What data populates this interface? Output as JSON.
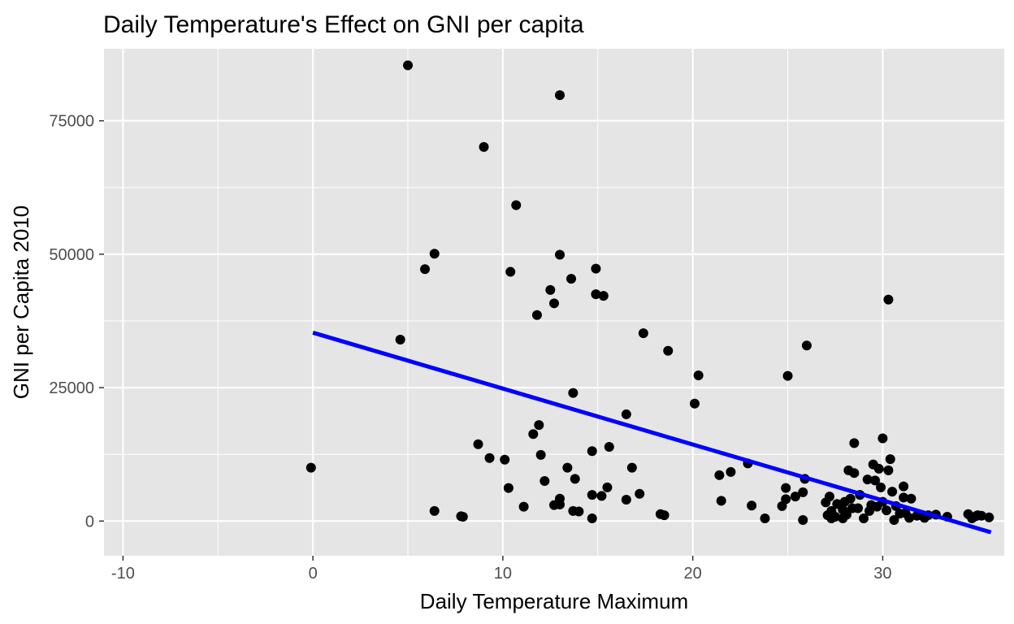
{
  "chart_data": {
    "type": "scatter",
    "title": "Daily Temperature's Effect on GNI per capita",
    "xlabel": "Daily Temperature Maximum",
    "ylabel": "GNI per Capita 2010",
    "xlim": [
      -11,
      36.4
    ],
    "ylim": [
      -6500,
      88500
    ],
    "x_ticks": [
      -10,
      0,
      10,
      20,
      30
    ],
    "y_ticks": [
      0,
      25000,
      50000,
      75000
    ],
    "x_tick_labels": [
      "-10",
      "0",
      "10",
      "20",
      "30"
    ],
    "y_tick_labels": [
      "0",
      "25000",
      "50000",
      "75000"
    ],
    "grid": true,
    "panel_background": "#e5e5e5",
    "point_color": "#000000",
    "trend_line": {
      "color": "#0000ff",
      "x": [
        0,
        35.7
      ],
      "y": [
        35300,
        -2100
      ]
    },
    "points": [
      [
        -0.1,
        10000
      ],
      [
        4.6,
        34000
      ],
      [
        5.0,
        85400
      ],
      [
        5.9,
        47200
      ],
      [
        6.4,
        50100
      ],
      [
        6.4,
        1900
      ],
      [
        7.8,
        900
      ],
      [
        7.9,
        800
      ],
      [
        8.7,
        14400
      ],
      [
        9.0,
        70100
      ],
      [
        9.3,
        11800
      ],
      [
        10.1,
        11500
      ],
      [
        10.3,
        6200
      ],
      [
        10.4,
        46700
      ],
      [
        10.7,
        59200
      ],
      [
        11.1,
        2700
      ],
      [
        11.6,
        16300
      ],
      [
        11.9,
        18000
      ],
      [
        11.8,
        38600
      ],
      [
        12.0,
        12400
      ],
      [
        12.2,
        7500
      ],
      [
        12.5,
        43300
      ],
      [
        12.7,
        40800
      ],
      [
        12.7,
        3000
      ],
      [
        13.0,
        79800
      ],
      [
        13.0,
        49900
      ],
      [
        13.0,
        4200
      ],
      [
        13.0,
        3100
      ],
      [
        13.4,
        10000
      ],
      [
        13.6,
        45400
      ],
      [
        13.7,
        24000
      ],
      [
        13.7,
        1900
      ],
      [
        13.8,
        7900
      ],
      [
        14.0,
        1800
      ],
      [
        14.7,
        13100
      ],
      [
        14.7,
        4900
      ],
      [
        14.7,
        500
      ],
      [
        14.9,
        47300
      ],
      [
        14.9,
        42500
      ],
      [
        15.2,
        4700
      ],
      [
        15.3,
        42200
      ],
      [
        15.5,
        6300
      ],
      [
        15.6,
        13900
      ],
      [
        16.5,
        20000
      ],
      [
        16.5,
        4000
      ],
      [
        16.8,
        10000
      ],
      [
        17.2,
        5100
      ],
      [
        17.4,
        35200
      ],
      [
        18.3,
        1300
      ],
      [
        18.5,
        1100
      ],
      [
        18.7,
        31900
      ],
      [
        20.1,
        22000
      ],
      [
        20.3,
        27300
      ],
      [
        21.4,
        8600
      ],
      [
        21.5,
        3800
      ],
      [
        22.0,
        9200
      ],
      [
        22.9,
        10800
      ],
      [
        23.1,
        2900
      ],
      [
        23.8,
        500
      ],
      [
        24.7,
        2800
      ],
      [
        24.9,
        4100
      ],
      [
        24.9,
        6200
      ],
      [
        25.0,
        27200
      ],
      [
        25.4,
        4600
      ],
      [
        25.8,
        5400
      ],
      [
        25.8,
        200
      ],
      [
        25.9,
        7900
      ],
      [
        26.0,
        32900
      ],
      [
        27.0,
        3500
      ],
      [
        27.1,
        1100
      ],
      [
        27.2,
        4600
      ],
      [
        27.3,
        500
      ],
      [
        27.3,
        1900
      ],
      [
        27.5,
        800
      ],
      [
        27.6,
        3200
      ],
      [
        27.9,
        2100
      ],
      [
        27.9,
        500
      ],
      [
        28.0,
        3600
      ],
      [
        28.1,
        1200
      ],
      [
        28.2,
        9500
      ],
      [
        28.3,
        4200
      ],
      [
        28.4,
        2400
      ],
      [
        28.5,
        9000
      ],
      [
        28.5,
        14600
      ],
      [
        28.7,
        2400
      ],
      [
        28.8,
        4900
      ],
      [
        29.0,
        500
      ],
      [
        29.2,
        7800
      ],
      [
        29.3,
        1900
      ],
      [
        29.4,
        3000
      ],
      [
        29.5,
        10600
      ],
      [
        29.6,
        7600
      ],
      [
        29.7,
        2700
      ],
      [
        29.8,
        9800
      ],
      [
        29.9,
        6300
      ],
      [
        30.0,
        15500
      ],
      [
        30.0,
        3600
      ],
      [
        30.2,
        2000
      ],
      [
        30.3,
        9500
      ],
      [
        30.3,
        41500
      ],
      [
        30.4,
        11600
      ],
      [
        30.5,
        5500
      ],
      [
        30.6,
        200
      ],
      [
        30.7,
        2800
      ],
      [
        30.9,
        1400
      ],
      [
        31.1,
        6500
      ],
      [
        31.1,
        4400
      ],
      [
        31.2,
        1500
      ],
      [
        31.4,
        600
      ],
      [
        31.5,
        4200
      ],
      [
        31.8,
        1000
      ],
      [
        32.0,
        1100
      ],
      [
        32.2,
        600
      ],
      [
        32.4,
        1100
      ],
      [
        32.8,
        1200
      ],
      [
        33.4,
        800
      ],
      [
        34.5,
        1300
      ],
      [
        34.7,
        500
      ],
      [
        34.9,
        900
      ],
      [
        35.0,
        1100
      ],
      [
        35.2,
        1000
      ],
      [
        35.6,
        700
      ]
    ]
  }
}
